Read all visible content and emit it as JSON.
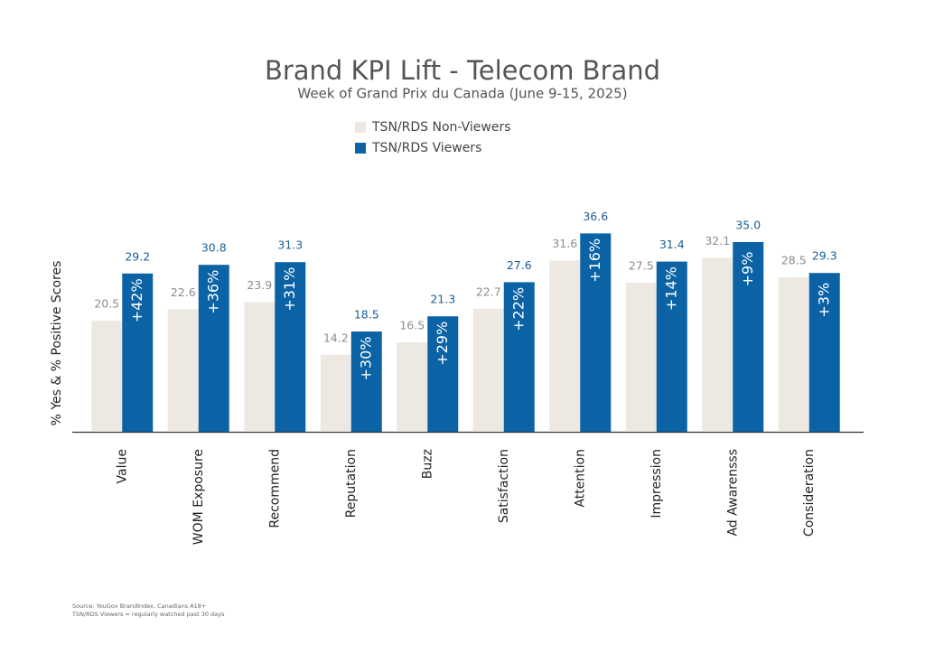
{
  "chart_data": {
    "type": "bar",
    "title": "Brand KPI Lift - Telecom Brand",
    "subtitle": "Week of Grand Prix du Canada (June 9-15, 2025)",
    "y_label": "% Yes & % Positive Scores",
    "categories": [
      "Value",
      "WOM Exposure",
      "Recommend",
      "Reputation",
      "Buzz",
      "Satisfaction",
      "Attention",
      "Impression",
      "Ad Awarensss",
      "Consideration"
    ],
    "series": [
      {
        "name": "TSN/RDS Non-Viewers",
        "color": "#ede9e2",
        "label_color": "#8c8c8c",
        "values": [
          20.5,
          22.6,
          23.9,
          14.2,
          16.5,
          22.7,
          31.6,
          27.5,
          32.1,
          28.5
        ],
        "value_labels": [
          "20.5",
          "22.6",
          "23.9",
          "14.2",
          "16.5",
          "22.7",
          "31.6",
          "27.5",
          "32.1",
          "28.5"
        ]
      },
      {
        "name": "TSN/RDS Viewers",
        "color": "#0b63a6",
        "label_color": "#1b5e98",
        "values": [
          29.2,
          30.8,
          31.3,
          18.5,
          21.3,
          27.6,
          36.6,
          31.4,
          35.0,
          29.3
        ],
        "value_labels": [
          "29.2",
          "30.8",
          "31.3",
          "18.5",
          "21.3",
          "27.6",
          "36.6",
          "31.4",
          "35.0",
          "29.3"
        ]
      }
    ],
    "annotations": [
      "+42%",
      "+36%",
      "+31%",
      "+30%",
      "+29%",
      "+22%",
      "+16%",
      "+14%",
      "+9%",
      "+3%"
    ],
    "ylim": [
      0,
      40
    ],
    "notes": [
      "Source: YouGov BrandIndex, Canadians A18+",
      "TSN/RDS Viewers = regularly watched past 30 days"
    ]
  }
}
